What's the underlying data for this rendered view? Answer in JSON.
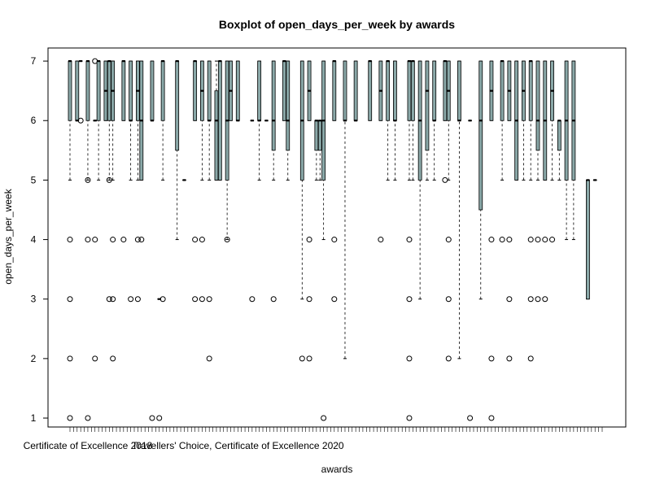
{
  "chart_data": {
    "type": "boxplot",
    "title": "Boxplot of open_days_per_week by awards",
    "xlabel": "awards",
    "ylabel": "open_days_per_week",
    "ylim": [
      0.85,
      7.22
    ],
    "yticks": [
      1,
      2,
      3,
      4,
      5,
      6,
      7
    ],
    "x_category_count": 150,
    "visible_category_labels": [
      {
        "category_index": 6,
        "label": "Certificate of Excellence 2018"
      },
      {
        "category_index": 48,
        "label": "Travellers' Choice, Certificate of Excellence 2020"
      }
    ],
    "box_fill": "#8aa8a8",
    "grid": false,
    "legend": "none",
    "series": [
      {
        "index": 1,
        "stats": [
          5,
          6,
          7,
          7,
          7
        ],
        "outliers": [
          1,
          2,
          3,
          4
        ]
      },
      {
        "index": 3,
        "stats": [
          6,
          6,
          6,
          7,
          7
        ]
      },
      {
        "index": 4,
        "stats": [
          7,
          7,
          7,
          7,
          7
        ],
        "outliers": [
          6
        ]
      },
      {
        "index": 6,
        "stats": [
          5,
          6,
          7,
          7,
          7
        ],
        "outliers": [
          1,
          4,
          5
        ]
      },
      {
        "index": 8,
        "stats": [
          6,
          6,
          6,
          6,
          6
        ],
        "outliers": [
          2,
          4,
          7
        ]
      },
      {
        "index": 9,
        "stats": [
          5,
          6,
          7,
          7,
          7
        ]
      },
      {
        "index": 11,
        "stats": [
          6,
          6,
          6.5,
          7,
          7
        ]
      },
      {
        "index": 12,
        "stats": [
          5,
          6,
          7,
          7,
          7
        ],
        "outliers": [
          3,
          5
        ]
      },
      {
        "index": 13,
        "stats": [
          5,
          6,
          6.5,
          7,
          7
        ],
        "outliers": [
          2,
          3,
          4
        ]
      },
      {
        "index": 16,
        "stats": [
          6,
          6,
          7,
          7,
          7
        ],
        "outliers": [
          4
        ]
      },
      {
        "index": 18,
        "stats": [
          5,
          6,
          6,
          7,
          7
        ],
        "outliers": [
          3
        ]
      },
      {
        "index": 20,
        "stats": [
          5,
          6,
          6.5,
          7,
          7
        ],
        "outliers": [
          3,
          4
        ]
      },
      {
        "index": 21,
        "stats": [
          5,
          5,
          6,
          7,
          7
        ],
        "outliers": [
          4
        ]
      },
      {
        "index": 24,
        "stats": [
          6,
          6,
          6,
          7,
          7
        ],
        "outliers": [
          1
        ]
      },
      {
        "index": 26,
        "stats": [
          3,
          3,
          3,
          3,
          3
        ],
        "outliers": [
          1
        ]
      },
      {
        "index": 27,
        "stats": [
          5,
          6,
          7,
          7,
          7
        ],
        "outliers": [
          3
        ]
      },
      {
        "index": 31,
        "stats": [
          4,
          5.5,
          7,
          7,
          7
        ]
      },
      {
        "index": 33,
        "stats": [
          5,
          5,
          5,
          5,
          5
        ]
      },
      {
        "index": 36,
        "stats": [
          6,
          6,
          7,
          7,
          7
        ],
        "outliers": [
          3,
          4
        ]
      },
      {
        "index": 38,
        "stats": [
          5,
          6,
          6.5,
          7,
          7
        ],
        "outliers": [
          3,
          4
        ]
      },
      {
        "index": 40,
        "stats": [
          5,
          6,
          6,
          7,
          7
        ],
        "outliers": [
          2,
          3
        ]
      },
      {
        "index": 42,
        "stats": [
          5,
          5,
          6,
          6.5,
          7
        ]
      },
      {
        "index": 43,
        "stats": [
          5,
          5,
          7,
          7,
          7
        ]
      },
      {
        "index": 45,
        "stats": [
          4,
          5,
          6,
          7,
          7
        ],
        "outliers": [
          4
        ]
      },
      {
        "index": 46,
        "stats": [
          6,
          6,
          6.5,
          7,
          7
        ]
      },
      {
        "index": 48,
        "stats": [
          6,
          6,
          6,
          7,
          7
        ]
      },
      {
        "index": 52,
        "stats": [
          6,
          6,
          6,
          6,
          6
        ],
        "outliers": [
          3
        ]
      },
      {
        "index": 54,
        "stats": [
          5,
          6,
          6,
          7,
          7
        ]
      },
      {
        "index": 56,
        "stats": [
          6,
          6,
          6,
          6,
          6
        ]
      },
      {
        "index": 58,
        "stats": [
          5,
          5.5,
          6,
          7,
          7
        ],
        "outliers": [
          3
        ]
      },
      {
        "index": 61,
        "stats": [
          6,
          6,
          7,
          7,
          7
        ]
      },
      {
        "index": 62,
        "stats": [
          5,
          5.5,
          6,
          7,
          7
        ]
      },
      {
        "index": 66,
        "stats": [
          3,
          5,
          6,
          7,
          7
        ],
        "outliers": [
          2
        ]
      },
      {
        "index": 68,
        "stats": [
          6,
          6,
          6.5,
          7,
          7
        ],
        "outliers": [
          2,
          3,
          4
        ]
      },
      {
        "index": 70,
        "stats": [
          5,
          5.5,
          6,
          6,
          6
        ]
      },
      {
        "index": 71,
        "stats": [
          5,
          5.5,
          6,
          6,
          6
        ]
      },
      {
        "index": 72,
        "stats": [
          4,
          5,
          6,
          7,
          7
        ],
        "outliers": [
          1
        ]
      },
      {
        "index": 75,
        "stats": [
          6,
          6,
          7,
          7,
          7
        ],
        "outliers": [
          3,
          4
        ]
      },
      {
        "index": 78,
        "stats": [
          2,
          6,
          6,
          7,
          7
        ]
      },
      {
        "index": 81,
        "stats": [
          6,
          6,
          6,
          7,
          7
        ]
      },
      {
        "index": 85,
        "stats": [
          6,
          6,
          7,
          7,
          7
        ]
      },
      {
        "index": 88,
        "stats": [
          6,
          6,
          6.5,
          7,
          7
        ],
        "outliers": [
          4
        ]
      },
      {
        "index": 90,
        "stats": [
          5,
          6,
          7,
          7,
          7
        ]
      },
      {
        "index": 92,
        "stats": [
          5,
          6,
          6,
          7,
          7
        ]
      },
      {
        "index": 96,
        "stats": [
          5,
          6,
          7,
          7,
          7
        ],
        "outliers": [
          1,
          2,
          3,
          4
        ]
      },
      {
        "index": 97,
        "stats": [
          5,
          6,
          7,
          7,
          7
        ]
      },
      {
        "index": 99,
        "stats": [
          3,
          5,
          6,
          7,
          7
        ]
      },
      {
        "index": 101,
        "stats": [
          5,
          5.5,
          6.5,
          7,
          7
        ]
      },
      {
        "index": 103,
        "stats": [
          5,
          6,
          6,
          7,
          7
        ]
      },
      {
        "index": 106,
        "stats": [
          6,
          6,
          7,
          7,
          7
        ],
        "outliers": [
          5
        ]
      },
      {
        "index": 107,
        "stats": [
          5,
          6,
          6.5,
          7,
          7
        ],
        "outliers": [
          2,
          3,
          4
        ]
      },
      {
        "index": 110,
        "stats": [
          2,
          6,
          6,
          7,
          7
        ]
      },
      {
        "index": 113,
        "stats": [
          6,
          6,
          6,
          6,
          6
        ],
        "outliers": [
          1
        ]
      },
      {
        "index": 116,
        "stats": [
          3,
          4.5,
          6,
          7,
          7
        ]
      },
      {
        "index": 119,
        "stats": [
          6,
          6,
          6.5,
          7,
          7
        ],
        "outliers": [
          1,
          2,
          4
        ]
      },
      {
        "index": 122,
        "stats": [
          5,
          6,
          7,
          7,
          7
        ],
        "outliers": [
          4
        ]
      },
      {
        "index": 124,
        "stats": [
          6,
          6,
          6.5,
          7,
          7
        ],
        "outliers": [
          2,
          3,
          4
        ]
      },
      {
        "index": 126,
        "stats": [
          5,
          5,
          6,
          7,
          7
        ]
      },
      {
        "index": 128,
        "stats": [
          5,
          6,
          6.5,
          7,
          7
        ]
      },
      {
        "index": 130,
        "stats": [
          5,
          6,
          7,
          7,
          7
        ],
        "outliers": [
          2,
          3,
          4
        ]
      },
      {
        "index": 132,
        "stats": [
          5,
          5.5,
          6,
          7,
          7
        ],
        "outliers": [
          3,
          4
        ]
      },
      {
        "index": 134,
        "stats": [
          5,
          5,
          6,
          7,
          7
        ],
        "outliers": [
          3,
          4
        ]
      },
      {
        "index": 136,
        "stats": [
          5,
          6,
          6.5,
          7,
          7
        ],
        "outliers": [
          4
        ]
      },
      {
        "index": 138,
        "stats": [
          5,
          5.5,
          6,
          6,
          6
        ]
      },
      {
        "index": 140,
        "stats": [
          4,
          5,
          6,
          7,
          7
        ]
      },
      {
        "index": 142,
        "stats": [
          4,
          5,
          6,
          7,
          7
        ]
      },
      {
        "index": 146,
        "stats": [
          3,
          3,
          5,
          5,
          5
        ]
      },
      {
        "index": 148,
        "stats": [
          5,
          5,
          5,
          5,
          5
        ]
      }
    ]
  }
}
